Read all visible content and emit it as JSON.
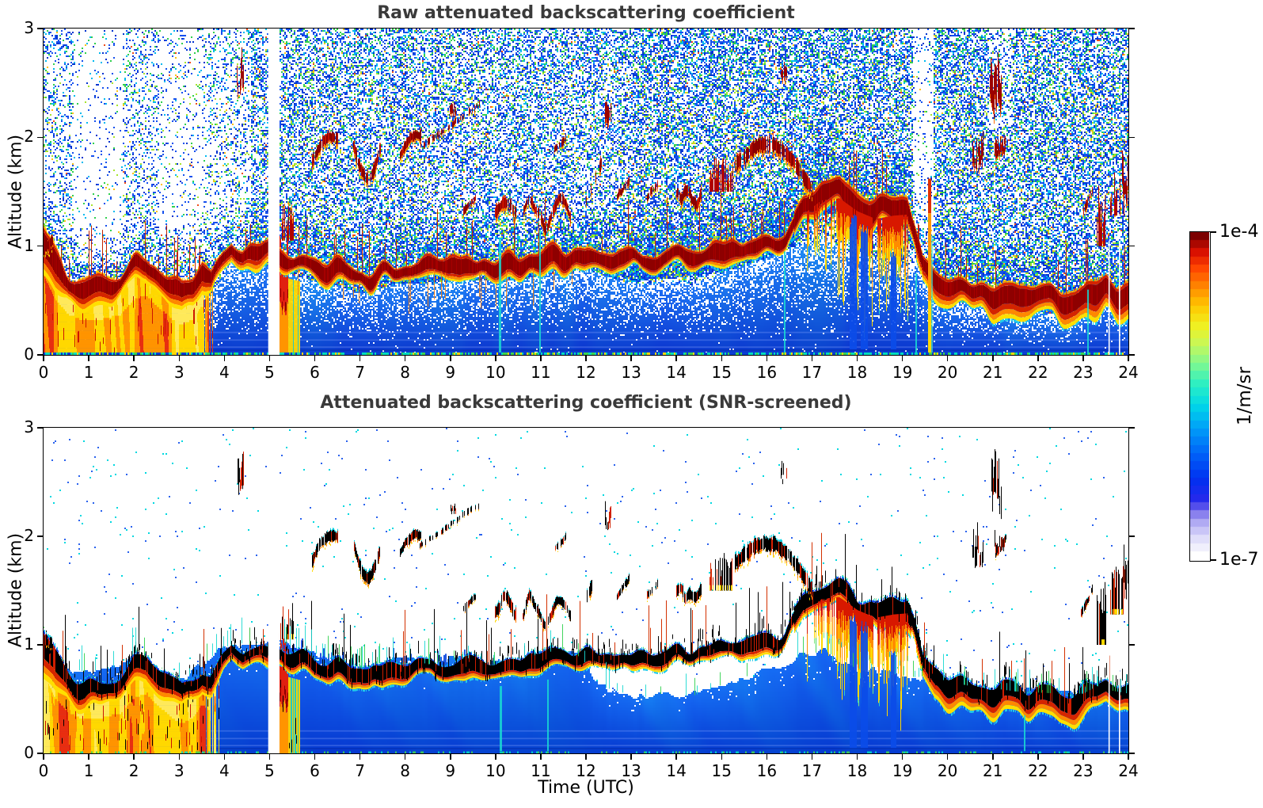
{
  "figure": {
    "panels": [
      {
        "title": "Raw attenuated backscattering coefficient",
        "ylabel": "Altitude (km)"
      },
      {
        "title": "Attenuated backscattering coefficient (SNR-screened)",
        "ylabel": "Altitude (km)",
        "xlabel": "Time (UTC)"
      }
    ],
    "colorbar": {
      "max_label": "1e-4",
      "min_label": "1e-7",
      "unit_label": "1/m/sr"
    },
    "title_color": "#3a3a3a"
  },
  "chart_data": {
    "type": "heatmap",
    "title_top": "Raw attenuated backscattering coefficient",
    "title_bottom": "Attenuated backscattering coefficient (SNR-screened)",
    "xlabel": "Time (UTC)",
    "ylabel": "Altitude (km)",
    "x_range_hours": [
      0,
      24
    ],
    "x_ticks": [
      0,
      1,
      2,
      3,
      4,
      5,
      6,
      7,
      8,
      9,
      10,
      11,
      12,
      13,
      14,
      15,
      16,
      17,
      18,
      19,
      20,
      21,
      22,
      23,
      24
    ],
    "y_range_km": [
      0,
      3
    ],
    "y_ticks": [
      0,
      1,
      2,
      3
    ],
    "colorbar": {
      "scale": "log",
      "min": 1e-07,
      "max": 0.0001,
      "min_label": "1e-7",
      "max_label": "1e-4",
      "unit": "1/m/sr",
      "stops": [
        [
          0.0,
          "#ffffff"
        ],
        [
          0.05,
          "#e1dffa"
        ],
        [
          0.1,
          "#b4aef4"
        ],
        [
          0.14,
          "#786eeb"
        ],
        [
          0.17,
          "#2828eb"
        ],
        [
          0.24,
          "#0030f0"
        ],
        [
          0.32,
          "#0064f8"
        ],
        [
          0.4,
          "#00a0f8"
        ],
        [
          0.47,
          "#00d8e8"
        ],
        [
          0.54,
          "#30f0c0"
        ],
        [
          0.6,
          "#80f890"
        ],
        [
          0.66,
          "#c8f858"
        ],
        [
          0.72,
          "#f0f020"
        ],
        [
          0.78,
          "#ffc800"
        ],
        [
          0.84,
          "#ff8800"
        ],
        [
          0.9,
          "#ff4400"
        ],
        [
          0.95,
          "#d81000"
        ],
        [
          1.0,
          "#7c0000"
        ]
      ]
    },
    "data_gap_hours": [
      4.97,
      5.22
    ],
    "warm_block_end_hour": 3.75,
    "restart_warm_hours": [
      5.2,
      5.66
    ],
    "boundary_layer_km": [
      [
        0,
        1.02
      ],
      [
        0.25,
        0.8
      ],
      [
        0.55,
        0.66
      ],
      [
        0.9,
        0.6
      ],
      [
        1.3,
        0.62
      ],
      [
        1.7,
        0.66
      ],
      [
        2,
        0.8
      ],
      [
        2.25,
        0.84
      ],
      [
        2.5,
        0.74
      ],
      [
        2.8,
        0.63
      ],
      [
        3.05,
        0.56
      ],
      [
        3.3,
        0.62
      ],
      [
        3.5,
        0.74
      ],
      [
        3.7,
        0.67
      ],
      [
        3.95,
        0.86
      ],
      [
        4.15,
        0.97
      ],
      [
        4.4,
        0.9
      ],
      [
        4.65,
        0.93
      ],
      [
        5.15,
        0.96
      ],
      [
        5.4,
        0.88
      ],
      [
        5.7,
        0.84
      ],
      [
        6.1,
        0.8
      ],
      [
        6.5,
        0.77
      ],
      [
        6.9,
        0.71
      ],
      [
        7.2,
        0.7
      ],
      [
        7.6,
        0.76
      ],
      [
        8,
        0.79
      ],
      [
        8.5,
        0.78
      ],
      [
        9,
        0.81
      ],
      [
        9.5,
        0.82
      ],
      [
        10,
        0.8
      ],
      [
        10.5,
        0.82
      ],
      [
        11,
        0.86
      ],
      [
        11.5,
        0.89
      ],
      [
        12,
        0.9
      ],
      [
        12.5,
        0.88
      ],
      [
        13,
        0.86
      ],
      [
        13.5,
        0.89
      ],
      [
        14,
        0.91
      ],
      [
        14.5,
        0.93
      ],
      [
        15,
        0.96
      ],
      [
        15.5,
        0.99
      ],
      [
        16,
        1.03
      ],
      [
        16.4,
        1.08
      ],
      [
        16.8,
        1.35
      ],
      [
        17.2,
        1.48
      ],
      [
        17.6,
        1.5
      ],
      [
        18,
        1.38
      ],
      [
        18.4,
        1.31
      ],
      [
        18.8,
        1.34
      ],
      [
        19.1,
        1.35
      ],
      [
        19.25,
        1.15
      ],
      [
        19.45,
        0.8
      ],
      [
        19.7,
        0.68
      ],
      [
        20,
        0.63
      ],
      [
        20.5,
        0.59
      ],
      [
        21,
        0.56
      ],
      [
        21.5,
        0.53
      ],
      [
        22,
        0.52
      ],
      [
        22.5,
        0.5
      ],
      [
        23,
        0.5
      ],
      [
        23.25,
        0.56
      ],
      [
        23.5,
        0.62
      ],
      [
        23.75,
        0.55
      ],
      [
        24,
        0.52
      ]
    ],
    "blue_top_km": [
      [
        0,
        0.98
      ],
      [
        0.4,
        0.82
      ],
      [
        0.9,
        0.75
      ],
      [
        1.5,
        0.78
      ],
      [
        2,
        0.92
      ],
      [
        2.3,
        0.88
      ],
      [
        2.7,
        0.72
      ],
      [
        3.05,
        0.66
      ],
      [
        3.4,
        0.78
      ],
      [
        3.8,
        0.92
      ],
      [
        4.2,
        1.02
      ],
      [
        4.65,
        1
      ],
      [
        5.15,
        1.05
      ],
      [
        5.5,
        0.98
      ],
      [
        6,
        0.92
      ],
      [
        6.5,
        0.85
      ],
      [
        7,
        0.78
      ],
      [
        7.5,
        0.84
      ],
      [
        8,
        0.88
      ],
      [
        8.5,
        0.82
      ],
      [
        9,
        0.86
      ],
      [
        9.5,
        0.88
      ],
      [
        10,
        0.82
      ],
      [
        10.5,
        0.86
      ],
      [
        11,
        0.92
      ],
      [
        11.5,
        0.96
      ],
      [
        11.9,
        0.88
      ],
      [
        12.3,
        0.62
      ],
      [
        12.8,
        0.56
      ],
      [
        13.3,
        0.52
      ],
      [
        13.8,
        0.56
      ],
      [
        14.3,
        0.52
      ],
      [
        14.8,
        0.6
      ],
      [
        15.3,
        0.68
      ],
      [
        15.8,
        0.74
      ],
      [
        16.3,
        0.82
      ],
      [
        16.8,
        0.9
      ],
      [
        17.3,
        0.95
      ],
      [
        17.6,
        0.85
      ],
      [
        18,
        0.78
      ],
      [
        18.5,
        0.75
      ],
      [
        19,
        0.72
      ],
      [
        19.3,
        0.7
      ],
      [
        19.6,
        0.72
      ],
      [
        20,
        0.66
      ],
      [
        20.5,
        0.62
      ],
      [
        21,
        0.6
      ],
      [
        21.5,
        0.57
      ],
      [
        22,
        0.56
      ],
      [
        22.5,
        0.55
      ],
      [
        23,
        0.55
      ],
      [
        23.3,
        0.62
      ],
      [
        23.6,
        0.58
      ],
      [
        24,
        0.55
      ]
    ],
    "cloud_layers": [
      {
        "t0": 0.0,
        "t1": 0.2,
        "a0": 0.98,
        "a1": 1.06,
        "kind": "blob",
        "th": 0.05
      },
      {
        "t0": 5.28,
        "t1": 5.52,
        "a0": 1.05,
        "a1": 1.4,
        "kind": "spiky"
      },
      {
        "t0": 5.95,
        "t1": 6.5,
        "a0": 1.78,
        "a1": 1.98,
        "kind": "arc",
        "th": 0.045,
        "peak": 0.1
      },
      {
        "t0": 6.85,
        "t1": 7.45,
        "a0": 1.62,
        "a1": 1.92,
        "kind": "v",
        "th": 0.05
      },
      {
        "t0": 7.9,
        "t1": 8.35,
        "a0": 1.84,
        "a1": 2.0,
        "kind": "arc",
        "th": 0.04,
        "peak": 0.08
      },
      {
        "t0": 8.3,
        "t1": 9.65,
        "a0": 1.9,
        "a1": 2.3,
        "kind": "rise",
        "th": 0.025
      },
      {
        "t0": 9.3,
        "t1": 9.55,
        "a0": 1.32,
        "a1": 1.45,
        "kind": "dash"
      },
      {
        "t0": 10.0,
        "t1": 10.45,
        "a0": 1.22,
        "a1": 1.5,
        "kind": "blob",
        "th": 0.05
      },
      {
        "t0": 10.6,
        "t1": 11.65,
        "a0": 1.18,
        "a1": 1.42,
        "kind": "wavy",
        "th": 0.04
      },
      {
        "t0": 11.3,
        "t1": 11.55,
        "a0": 1.88,
        "a1": 2.0,
        "kind": "dash"
      },
      {
        "t0": 12.0,
        "t1": 12.35,
        "a0": 1.42,
        "a1": 1.78,
        "kind": "rise",
        "th": 0.05
      },
      {
        "t0": 12.7,
        "t1": 12.95,
        "a0": 1.45,
        "a1": 1.62,
        "kind": "dash"
      },
      {
        "t0": 13.35,
        "t1": 13.6,
        "a0": 1.45,
        "a1": 1.58,
        "kind": "dash"
      },
      {
        "t0": 14.0,
        "t1": 14.55,
        "a0": 1.32,
        "a1": 1.58,
        "kind": "blob",
        "th": 0.045
      },
      {
        "t0": 14.75,
        "t1": 15.25,
        "a0": 1.5,
        "a1": 1.85,
        "kind": "spiky"
      },
      {
        "t0": 15.3,
        "t1": 17.0,
        "a0": 1.75,
        "a1": 1.5,
        "kind": "arc",
        "th": 0.06,
        "peak": 0.3
      },
      {
        "t0": 21.05,
        "t1": 21.3,
        "a0": 1.82,
        "a1": 2.0,
        "kind": "dash"
      },
      {
        "t0": 22.95,
        "t1": 23.2,
        "a0": 1.28,
        "a1": 1.52,
        "kind": "dash"
      },
      {
        "t0": 23.3,
        "t1": 23.5,
        "a0": 1.0,
        "a1": 1.62,
        "kind": "spiky"
      },
      {
        "t0": 23.6,
        "t1": 23.9,
        "a0": 1.28,
        "a1": 1.72,
        "kind": "spiky"
      }
    ],
    "high_dashes": [
      [
        4.28,
        4.42,
        2.35,
        2.75
      ],
      [
        9,
        9.12,
        2.18,
        2.3
      ],
      [
        12.42,
        12.55,
        2.05,
        2.32
      ],
      [
        16.32,
        16.44,
        2.48,
        2.66
      ],
      [
        20.55,
        20.78,
        1.7,
        2.06
      ],
      [
        20.95,
        21.18,
        2.15,
        2.72
      ],
      [
        21.05,
        21.28,
        1.82,
        2.0
      ],
      [
        23.86,
        24,
        1.38,
        1.8
      ]
    ],
    "precip": [
      {
        "t0": 16.9,
        "t1": 17.5,
        "light": true
      },
      {
        "t0": 17.55,
        "t1": 18.35,
        "light": false
      },
      {
        "t0": 18.45,
        "t1": 19.12,
        "light": false
      }
    ],
    "blue_wedges": [
      [
        17.84,
        17.98,
        1.28
      ],
      [
        18.08,
        18.22,
        1.2
      ],
      [
        18.76,
        18.86,
        0.95
      ]
    ],
    "tall_streak": {
      "t": 19.58,
      "a1": 1.62
    },
    "cyan_streaks_raw": [
      [
        10.08,
        1.08
      ],
      [
        10.98,
        1.15
      ],
      [
        16.38,
        0.95
      ],
      [
        19.3,
        0.75
      ],
      [
        23.1,
        0.6
      ]
    ],
    "cyan_streaks_screened": [
      [
        10.1,
        0.62
      ],
      [
        11.15,
        0.68
      ],
      [
        21.7,
        0.35
      ]
    ],
    "white_lines_hours": [
      23.56,
      23.79
    ]
  }
}
